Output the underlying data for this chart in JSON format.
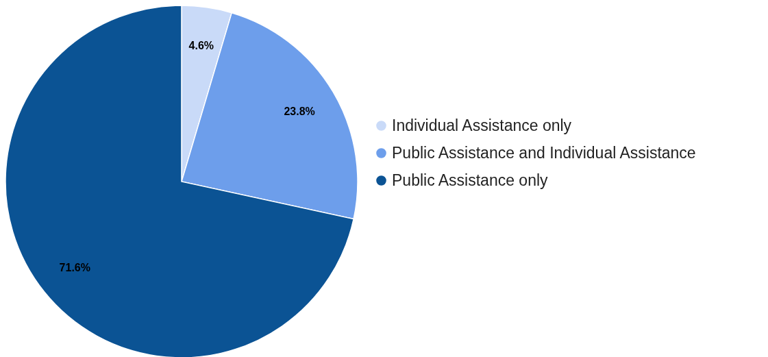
{
  "chart_data": {
    "type": "pie",
    "categories": [
      "Individual Assistance only",
      "Public Assistance and Individual Assistance",
      "Public Assistance only"
    ],
    "values": [
      4.6,
      23.8,
      71.6
    ],
    "colors": [
      "#c9daf8",
      "#6d9eeb",
      "#0b5394"
    ],
    "value_labels": [
      "4.6%",
      "23.8%",
      "71.6%"
    ],
    "legend": "right"
  }
}
